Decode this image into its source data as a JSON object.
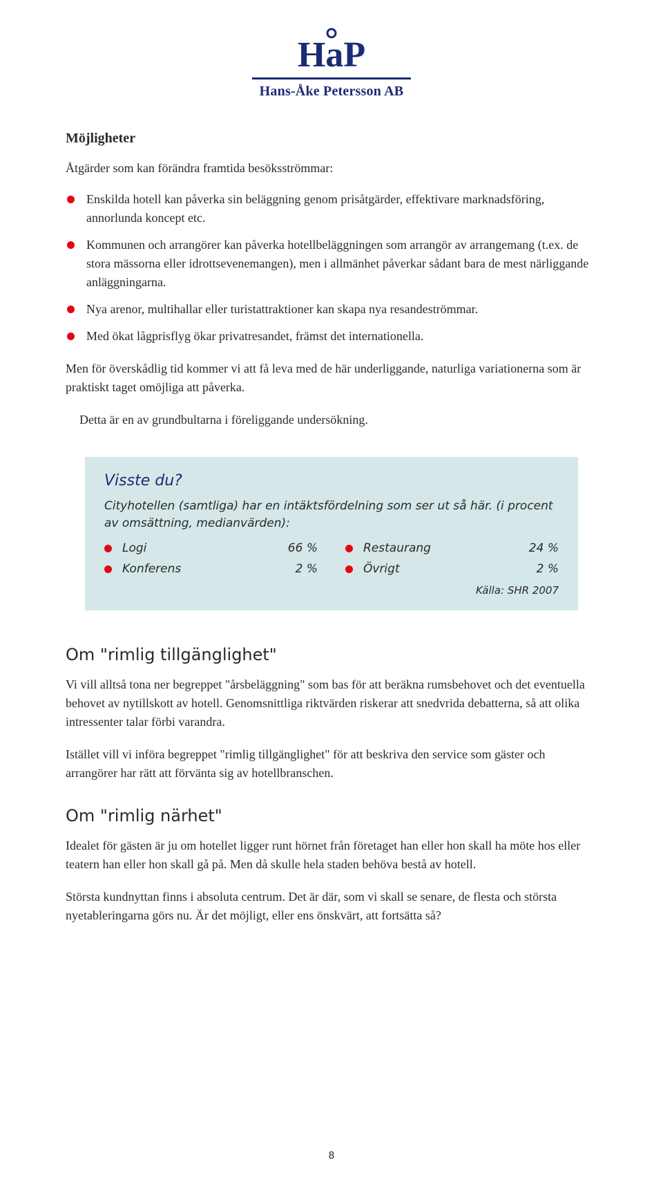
{
  "colors": {
    "brand": "#1b2b75",
    "body_text": "#2a2a2a",
    "bullet_red": "#e30613",
    "callout_bg": "#d5e7e8",
    "callout_text": "#2a2a2a",
    "serif_font": "Georgia, 'Times New Roman', serif"
  },
  "typography": {
    "body_font": "Georgia, 'Times New Roman', serif",
    "sans_font": "'DejaVu Sans', Verdana, sans-serif"
  },
  "logo": {
    "mark": "HåP",
    "company": "Hans-Åke Petersson AB"
  },
  "section1": {
    "title": "Möjligheter",
    "intro": "Åtgärder som kan förändra framtida besöksströmmar:",
    "bullets": [
      "Enskilda hotell kan påverka sin beläggning genom prisåtgärder, effektivare marknadsföring, annorlunda koncept etc.",
      "Kommunen och arrangörer kan påverka hotellbeläggningen som arrangör av arrangemang (t.ex. de stora mässorna eller idrottsevenemangen), men i allmänhet påverkar sådant bara de mest närliggande anläggningarna.",
      "Nya arenor, multihallar eller turistattraktioner kan skapa nya resandeströmmar.",
      "Med ökat lågprisflyg ökar privatresandet, främst det internationella."
    ],
    "p1": "Men för överskådlig tid kommer vi att få leva med de här underliggande, naturliga variationerna som är praktiskt taget omöjliga att påverka.",
    "p2": "Detta är en av grundbultarna i föreliggande undersökning."
  },
  "callout": {
    "title": "Visste du?",
    "sub": "Cityhotellen (samtliga) har en intäktsfördelning som ser ut så här. (i procent av omsättning, medianvärden):",
    "items": [
      {
        "label": "Logi",
        "pct": "66 %"
      },
      {
        "label": "Restaurang",
        "pct": "24 %"
      },
      {
        "label": "Konferens",
        "pct": "2 %"
      },
      {
        "label": "Övrigt",
        "pct": "2 %"
      }
    ],
    "source": "Källa: SHR 2007"
  },
  "section2": {
    "heading": "Om \"rimlig tillgänglighet\"",
    "p1": "Vi vill alltså tona ner begreppet \"årsbeläggning\" som bas för att beräkna rumsbehovet och det eventuella behovet av nytillskott av hotell. Genomsnittliga riktvärden riskerar att snedvrida debatterna, så att olika intressenter talar förbi varandra.",
    "p2": "Istället vill vi införa begreppet \"rimlig tillgänglighet\" för att beskriva den service som gäster och arrangörer har rätt att förvänta sig av hotellbranschen."
  },
  "section3": {
    "heading": "Om \"rimlig närhet\"",
    "p1": "Idealet för gästen är ju om hotellet ligger runt hörnet från företaget han eller hon skall ha möte hos eller teatern han eller hon skall gå på. Men då skulle hela staden behöva bestå av hotell.",
    "p2": "Största kundnyttan finns i absoluta centrum. Det är där, som vi skall se senare, de flesta och största nyetableringarna görs nu. Är det möjligt, eller ens önskvärt, att fortsätta så?"
  },
  "page_number": "8"
}
